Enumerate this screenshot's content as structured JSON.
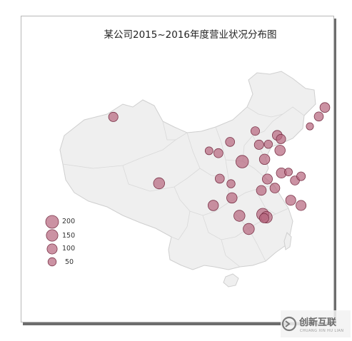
{
  "title": "某公司2015~2016年度营业状况分布图",
  "colors": {
    "bubble_fill": "#b7687f",
    "bubble_stroke": "#7a3348",
    "land_fill": "#efefef",
    "land_stroke": "#cfcfcf"
  },
  "legend": {
    "items": [
      {
        "label": "200",
        "value": 200
      },
      {
        "label": "150",
        "value": 150
      },
      {
        "label": "100",
        "value": 100
      },
      {
        "label": "50",
        "value": 50
      }
    ]
  },
  "chart_data": {
    "type": "bubble-map",
    "title": "某公司2015~2016年度营业状况分布图",
    "legend_sizes": [
      200,
      150,
      100,
      50
    ],
    "points": [
      {
        "lon": 81.3,
        "lat": 43.8,
        "value": 80
      },
      {
        "lon": 126.6,
        "lat": 45.8,
        "value": 90
      },
      {
        "lon": 125.3,
        "lat": 43.9,
        "value": 70
      },
      {
        "lon": 123.4,
        "lat": 41.8,
        "value": 30
      },
      {
        "lon": 116.4,
        "lat": 39.9,
        "value": 90
      },
      {
        "lon": 117.2,
        "lat": 39.1,
        "value": 80
      },
      {
        "lon": 111.7,
        "lat": 40.8,
        "value": 60
      },
      {
        "lon": 106.3,
        "lat": 38.5,
        "value": 70
      },
      {
        "lon": 112.5,
        "lat": 37.9,
        "value": 80
      },
      {
        "lon": 114.5,
        "lat": 38.0,
        "value": 50
      },
      {
        "lon": 117.0,
        "lat": 36.7,
        "value": 110
      },
      {
        "lon": 101.8,
        "lat": 36.6,
        "value": 40
      },
      {
        "lon": 103.8,
        "lat": 36.1,
        "value": 70
      },
      {
        "lon": 108.9,
        "lat": 34.3,
        "value": 190
      },
      {
        "lon": 113.7,
        "lat": 34.8,
        "value": 110
      },
      {
        "lon": 117.3,
        "lat": 31.9,
        "value": 100
      },
      {
        "lon": 118.8,
        "lat": 32.1,
        "value": 40
      },
      {
        "lon": 120.2,
        "lat": 30.3,
        "value": 70
      },
      {
        "lon": 121.5,
        "lat": 31.2,
        "value": 60
      },
      {
        "lon": 114.3,
        "lat": 30.6,
        "value": 100
      },
      {
        "lon": 104.1,
        "lat": 30.7,
        "value": 70
      },
      {
        "lon": 106.5,
        "lat": 29.6,
        "value": 50
      },
      {
        "lon": 115.9,
        "lat": 28.7,
        "value": 90
      },
      {
        "lon": 113.0,
        "lat": 28.2,
        "value": 90
      },
      {
        "lon": 106.7,
        "lat": 26.6,
        "value": 110
      },
      {
        "lon": 119.3,
        "lat": 26.1,
        "value": 100
      },
      {
        "lon": 121.5,
        "lat": 25.0,
        "value": 100
      },
      {
        "lon": 102.7,
        "lat": 25.0,
        "value": 110
      },
      {
        "lon": 108.3,
        "lat": 22.8,
        "value": 130
      },
      {
        "lon": 113.3,
        "lat": 23.1,
        "value": 170
      },
      {
        "lon": 114.1,
        "lat": 22.5,
        "value": 150
      },
      {
        "lon": 113.6,
        "lat": 22.3,
        "value": 80
      },
      {
        "lon": 110.3,
        "lat": 20.0,
        "value": 130
      },
      {
        "lon": 91.1,
        "lat": 29.7,
        "value": 130
      }
    ]
  },
  "watermark": {
    "text": "创新互联",
    "subtext": "CHUANG XIN HU LIAN"
  }
}
